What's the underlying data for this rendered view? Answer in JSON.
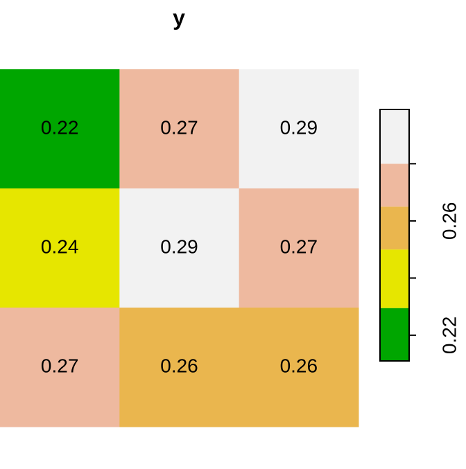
{
  "chart_data": {
    "type": "heatmap",
    "title": "y",
    "cells": [
      [
        0.22,
        0.27,
        0.29
      ],
      [
        0.24,
        0.29,
        0.27
      ],
      [
        0.27,
        0.26,
        0.26
      ]
    ],
    "legend": {
      "breaks": [
        0.211,
        0.2295,
        0.25,
        0.265,
        0.28,
        0.299
      ],
      "colors": [
        "#00A600",
        "#E6E600",
        "#EAB64E",
        "#EEB99F",
        "#F2F2F2"
      ],
      "ticks": [
        0.22,
        0.26
      ],
      "minor_ticks": [
        0.24,
        0.28
      ]
    }
  }
}
